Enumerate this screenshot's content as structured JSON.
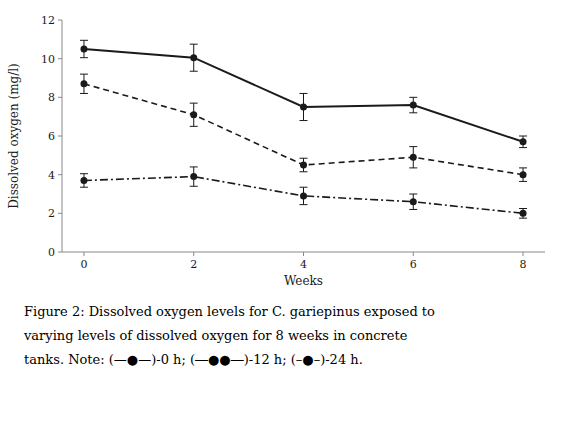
{
  "chart_data": {
    "type": "line",
    "x_label": "Weeks",
    "y_label": "Dissolved oxygen (mg/l)",
    "x": [
      0,
      2,
      4,
      6,
      8
    ],
    "xlim": [
      -0.4,
      8.4
    ],
    "xticks": [
      0,
      2,
      4,
      6,
      8
    ],
    "ylim": [
      0,
      12
    ],
    "yticks": [
      0,
      2,
      4,
      6,
      8,
      10,
      12
    ],
    "grid": false,
    "color": "#1a1a1a",
    "marker": "circle",
    "series": [
      {
        "line_style": "solid",
        "values": [
          10.5,
          10.05,
          7.5,
          7.6,
          5.7
        ],
        "errors": [
          0.45,
          0.7,
          0.7,
          0.4,
          0.3
        ]
      },
      {
        "line_style": "dashed",
        "values": [
          8.7,
          7.1,
          4.5,
          4.9,
          4.0
        ],
        "errors": [
          0.5,
          0.6,
          0.35,
          0.55,
          0.35
        ]
      },
      {
        "line_style": "dashdot",
        "values": [
          3.7,
          3.9,
          2.9,
          2.6,
          2.0
        ],
        "errors": [
          0.35,
          0.5,
          0.45,
          0.4,
          0.25
        ]
      }
    ],
    "annotations": [
      "Figure 2: Dissolved oxygen levels for C. gariepinus exposed to",
      "varying levels of dissolved oxygen for 8 weeks in concrete",
      "tanks. Note: (—●—)‑0 h;  (―●●―)‑12 h;  (–●–)‑24 h."
    ]
  }
}
